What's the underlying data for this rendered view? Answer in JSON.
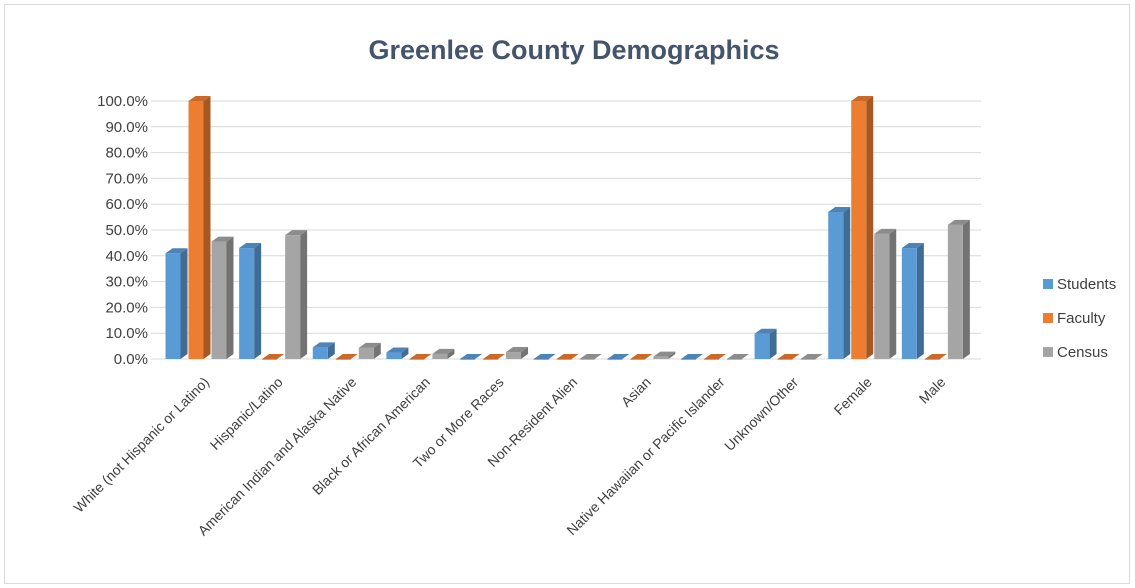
{
  "chart_data": {
    "type": "bar",
    "title": "Greenlee County Demographics",
    "xlabel": "",
    "ylabel": "",
    "ylim": [
      0,
      100
    ],
    "ytick_values": [
      0,
      10,
      20,
      30,
      40,
      50,
      60,
      70,
      80,
      90,
      100
    ],
    "ytick_labels": [
      "0.0%",
      "10.0%",
      "20.0%",
      "30.0%",
      "40.0%",
      "50.0%",
      "60.0%",
      "70.0%",
      "80.0%",
      "90.0%",
      "100.0%"
    ],
    "grid": true,
    "legend_position": "right",
    "style": "3d-clustered-column",
    "categories": [
      "White (not Hispanic or Latino)",
      "Hispanic/Latino",
      "American Indian and Alaska Native",
      "Black or African American",
      "Two or More Races",
      "Non-Resident Alien",
      "Asian",
      "Native Hawaiian or Pacific Islander",
      "Unknown/Other",
      "Female",
      "Male"
    ],
    "series": [
      {
        "name": "Students",
        "color": "#5b9bd5",
        "values": [
          41.0,
          43.0,
          4.5,
          2.5,
          0.0,
          0.0,
          0.0,
          0.0,
          9.8,
          57.0,
          43.0
        ]
      },
      {
        "name": "Faculty",
        "color": "#ed7d31",
        "values": [
          100.0,
          0.0,
          0.0,
          0.0,
          0.0,
          0.0,
          0.0,
          0.0,
          0.0,
          100.0,
          0.0
        ]
      },
      {
        "name": "Census",
        "color": "#a5a5a5",
        "values": [
          45.5,
          48.0,
          4.3,
          2.0,
          2.7,
          0.0,
          0.9,
          0.0,
          0.0,
          48.5,
          52.0
        ]
      }
    ]
  }
}
